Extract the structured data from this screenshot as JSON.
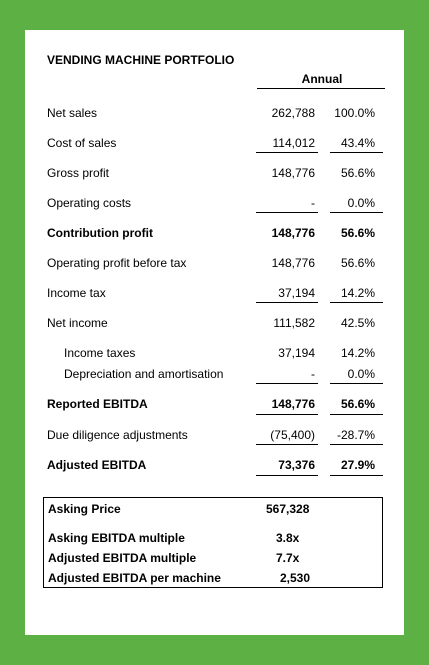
{
  "title": "VENDING MACHINE PORTFOLIO",
  "column_header": "Annual",
  "rows": [
    {
      "label": "Net sales",
      "value": "262,788",
      "pct": "100.0%"
    },
    {
      "label": "Cost of sales",
      "value": "114,012",
      "pct": "43.4%"
    },
    {
      "label": "Gross profit",
      "value": "148,776",
      "pct": "56.6%"
    },
    {
      "label": "Operating costs",
      "value": "-",
      "pct": "0.0%"
    },
    {
      "label": "Contribution profit",
      "value": "148,776",
      "pct": "56.6%"
    },
    {
      "label": "Operating profit before tax",
      "value": "148,776",
      "pct": "56.6%"
    },
    {
      "label": "Income tax",
      "value": "37,194",
      "pct": "14.2%"
    },
    {
      "label": "Net income",
      "value": "111,582",
      "pct": "42.5%"
    },
    {
      "label": "Income taxes",
      "value": "37,194",
      "pct": "14.2%"
    },
    {
      "label": "Depreciation and amortisation",
      "value": "-",
      "pct": "0.0%"
    },
    {
      "label": "Reported EBITDA",
      "value": "148,776",
      "pct": "56.6%"
    },
    {
      "label": "Due diligence adjustments",
      "value": "(75,400)",
      "pct": "-28.7%"
    },
    {
      "label": "Adjusted EBITDA",
      "value": "73,376",
      "pct": "27.9%"
    }
  ],
  "summary": [
    {
      "label": "Asking Price",
      "value": "567,328"
    },
    {
      "label": "Asking EBITDA multiple",
      "value": "3.8x"
    },
    {
      "label": "Adjusted EBITDA multiple",
      "value": "7.7x"
    },
    {
      "label": "Adjusted EBITDA per machine",
      "value": "2,530"
    }
  ]
}
